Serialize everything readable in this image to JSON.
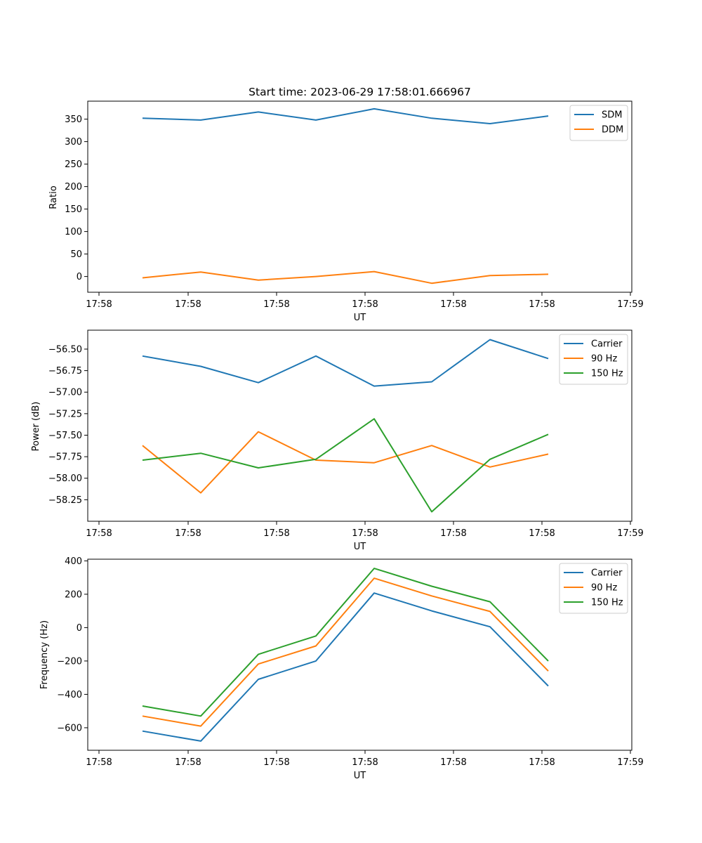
{
  "chart_data": [
    {
      "type": "line",
      "title": "Start time: 2023-06-29 17:58:01.666967",
      "xlabel": "UT",
      "ylabel": "Ratio",
      "x_tick_labels": [
        "17:58",
        "17:58",
        "17:58",
        "17:58",
        "17:58",
        "17:58",
        "17:58"
      ],
      "x_end_tick_label": "17:59",
      "y_ticks": [
        0,
        50,
        100,
        150,
        200,
        250,
        300,
        350
      ],
      "y_tick_labels": [
        "0",
        "50",
        "100",
        "150",
        "200",
        "250",
        "300",
        "350"
      ],
      "ylim": [
        -35,
        390
      ],
      "legend_position": "top-right",
      "grid": false,
      "series": [
        {
          "name": "SDM",
          "color": "#1f77b4",
          "values": [
            352,
            348,
            366,
            348,
            373,
            352,
            340,
            357
          ]
        },
        {
          "name": "DDM",
          "color": "#ff7f0e",
          "values": [
            -3,
            10,
            -8,
            0,
            11,
            -15,
            2,
            5
          ]
        }
      ]
    },
    {
      "type": "line",
      "title": "",
      "xlabel": "UT",
      "ylabel": "Power (dB)",
      "x_tick_labels": [
        "17:58",
        "17:58",
        "17:58",
        "17:58",
        "17:58",
        "17:58",
        "17:58"
      ],
      "x_end_tick_label": "17:59",
      "y_ticks": [
        -58.25,
        -58.0,
        -57.75,
        -57.5,
        -57.25,
        -57.0,
        -56.75,
        -56.5
      ],
      "y_tick_labels": [
        "−58.25",
        "−58.00",
        "−57.75",
        "−57.50",
        "−57.25",
        "−57.00",
        "−56.75",
        "−56.50"
      ],
      "ylim": [
        -58.5,
        -56.28
      ],
      "legend_position": "top-right",
      "grid": false,
      "series": [
        {
          "name": "Carrier",
          "color": "#1f77b4",
          "values": [
            -56.58,
            -56.7,
            -56.89,
            -56.58,
            -56.93,
            -56.88,
            -56.39,
            -56.61
          ]
        },
        {
          "name": "90 Hz",
          "color": "#ff7f0e",
          "values": [
            -57.62,
            -58.17,
            -57.46,
            -57.79,
            -57.82,
            -57.62,
            -57.87,
            -57.72
          ]
        },
        {
          "name": "150 Hz",
          "color": "#2ca02c",
          "values": [
            -57.79,
            -57.71,
            -57.88,
            -57.78,
            -57.31,
            -58.39,
            -57.78,
            -57.49
          ]
        }
      ]
    },
    {
      "type": "line",
      "title": "",
      "xlabel": "UT",
      "ylabel": "Frequency (Hz)",
      "x_tick_labels": [
        "17:58",
        "17:58",
        "17:58",
        "17:58",
        "17:58",
        "17:58",
        "17:58"
      ],
      "x_end_tick_label": "17:59",
      "y_ticks": [
        -600,
        -400,
        -200,
        0,
        200,
        400
      ],
      "y_tick_labels": [
        "−600",
        "−400",
        "−200",
        "0",
        "200",
        "400"
      ],
      "ylim": [
        -735,
        410
      ],
      "legend_position": "top-right",
      "grid": false,
      "series": [
        {
          "name": "Carrier",
          "color": "#1f77b4",
          "values": [
            -620,
            -680,
            -310,
            -200,
            207,
            100,
            5,
            -350
          ]
        },
        {
          "name": "90 Hz",
          "color": "#ff7f0e",
          "values": [
            -530,
            -590,
            -218,
            -110,
            296,
            190,
            97,
            -260
          ]
        },
        {
          "name": "150 Hz",
          "color": "#2ca02c",
          "values": [
            -470,
            -530,
            -160,
            -50,
            355,
            248,
            155,
            -200
          ]
        }
      ]
    }
  ]
}
